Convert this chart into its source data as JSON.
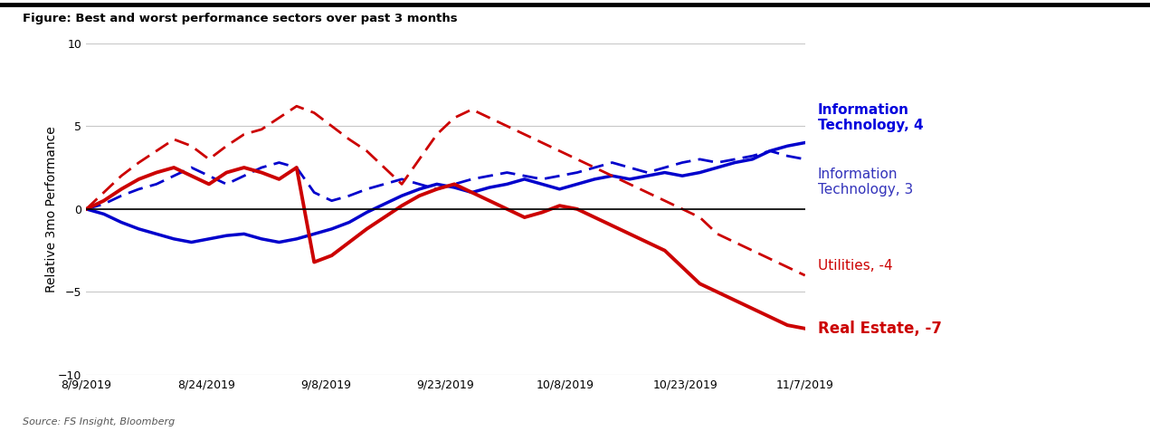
{
  "title": "Figure: Best and worst performance sectors over past 3 months",
  "ylabel": "Relative 3mo Performance",
  "source": "Source: FS Insight, Bloomberg",
  "ylim": [
    -10,
    10
  ],
  "yticks": [
    -10,
    -5,
    0,
    5,
    10
  ],
  "xtick_labels": [
    "8/9/2019",
    "8/24/2019",
    "9/8/2019",
    "9/23/2019",
    "10/8/2019",
    "10/23/2019",
    "11/7/2019"
  ],
  "background_color": "#ffffff",
  "grid_color": "#c8c8c8",
  "series": {
    "IT_solid": {
      "color": "#0000cc",
      "linestyle": "solid",
      "linewidth": 2.5,
      "values": [
        0.0,
        -0.3,
        -0.8,
        -1.2,
        -1.5,
        -1.8,
        -2.0,
        -1.8,
        -1.6,
        -1.5,
        -1.8,
        -2.0,
        -1.8,
        -1.5,
        -1.2,
        -0.8,
        -0.2,
        0.3,
        0.8,
        1.2,
        1.5,
        1.3,
        1.0,
        1.3,
        1.5,
        1.8,
        1.5,
        1.2,
        1.5,
        1.8,
        2.0,
        1.8,
        2.0,
        2.2,
        2.0,
        2.2,
        2.5,
        2.8,
        3.0,
        3.5,
        3.8,
        4.0
      ]
    },
    "IT_dashed": {
      "color": "#0000cc",
      "linestyle": "dashed",
      "linewidth": 2.0,
      "values": [
        0.0,
        0.3,
        0.8,
        1.2,
        1.5,
        2.0,
        2.5,
        2.0,
        1.5,
        2.0,
        2.5,
        2.8,
        2.5,
        1.0,
        0.5,
        0.8,
        1.2,
        1.5,
        1.8,
        1.5,
        1.2,
        1.5,
        1.8,
        2.0,
        2.2,
        2.0,
        1.8,
        2.0,
        2.2,
        2.5,
        2.8,
        2.5,
        2.2,
        2.5,
        2.8,
        3.0,
        2.8,
        3.0,
        3.2,
        3.5,
        3.2,
        3.0
      ]
    },
    "RE_solid": {
      "color": "#cc0000",
      "linestyle": "solid",
      "linewidth": 2.8,
      "values": [
        0.0,
        0.5,
        1.2,
        1.8,
        2.2,
        2.5,
        2.0,
        1.5,
        2.2,
        2.5,
        2.2,
        1.8,
        2.5,
        -3.2,
        -2.8,
        -2.0,
        -1.2,
        -0.5,
        0.2,
        0.8,
        1.2,
        1.5,
        1.0,
        0.5,
        0.0,
        -0.5,
        -0.2,
        0.2,
        0.0,
        -0.5,
        -1.0,
        -1.5,
        -2.0,
        -2.5,
        -3.5,
        -4.5,
        -5.0,
        -5.5,
        -6.0,
        -6.5,
        -7.0,
        -7.2
      ]
    },
    "UT_dashed": {
      "color": "#cc0000",
      "linestyle": "dashed",
      "linewidth": 2.0,
      "values": [
        0.0,
        1.0,
        2.0,
        2.8,
        3.5,
        4.2,
        3.8,
        3.0,
        3.8,
        4.5,
        4.8,
        5.5,
        6.2,
        5.8,
        5.0,
        4.2,
        3.5,
        2.5,
        1.5,
        3.0,
        4.5,
        5.5,
        6.0,
        5.5,
        5.0,
        4.5,
        4.0,
        3.5,
        3.0,
        2.5,
        2.0,
        1.5,
        1.0,
        0.5,
        0.0,
        -0.5,
        -1.5,
        -2.0,
        -2.5,
        -3.0,
        -3.5,
        -4.0
      ]
    }
  },
  "ann_IT_solid_text": "Information\nTechnology, 4",
  "ann_IT_solid_color": "#0000dd",
  "ann_IT_solid_fontsize": 11,
  "ann_IT_solid_fontweight": "bold",
  "ann_IT_dashed_text": "Information\nTechnology, 3",
  "ann_IT_dashed_color": "#3333bb",
  "ann_IT_dashed_fontsize": 11,
  "ann_IT_dashed_fontweight": "normal",
  "ann_UT_text": "Utilities, -4",
  "ann_UT_color": "#cc0000",
  "ann_UT_fontsize": 11,
  "ann_UT_fontweight": "normal",
  "ann_RE_text": "Real Estate, -7",
  "ann_RE_color": "#cc0000",
  "ann_RE_fontsize": 12,
  "ann_RE_fontweight": "bold"
}
